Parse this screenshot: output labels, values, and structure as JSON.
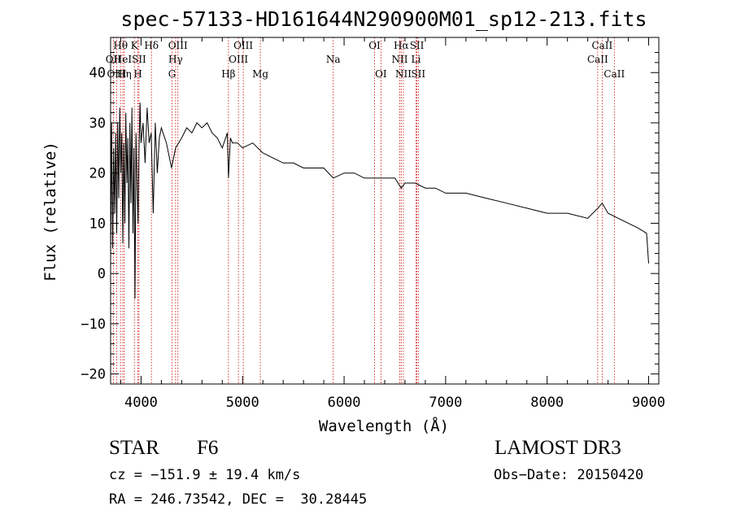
{
  "chart_data": {
    "type": "line",
    "title": "spec-57133-HD161644N290900M01_sp12-213.fits",
    "xlabel": "Wavelength (Å)",
    "ylabel": "Flux (relative)",
    "xlim": [
      3700,
      9100
    ],
    "ylim": [
      -22,
      47
    ],
    "xticks": [
      4000,
      5000,
      6000,
      7000,
      8000,
      9000
    ],
    "xtick_labels": [
      "4000",
      "5000",
      "6000",
      "7000",
      "8000",
      "9000"
    ],
    "yticks": [
      -20,
      -10,
      0,
      10,
      20,
      30,
      40
    ],
    "ytick_labels": [
      "−20",
      "−10",
      "0",
      "10",
      "20",
      "30",
      "40"
    ],
    "spectrum": {
      "name": "flux",
      "x": [
        3700,
        3710,
        3720,
        3730,
        3740,
        3750,
        3760,
        3770,
        3780,
        3790,
        3800,
        3810,
        3820,
        3830,
        3840,
        3850,
        3860,
        3870,
        3880,
        3890,
        3900,
        3910,
        3920,
        3930,
        3940,
        3950,
        3960,
        3970,
        3980,
        3990,
        4000,
        4020,
        4040,
        4060,
        4080,
        4100,
        4120,
        4140,
        4160,
        4180,
        4200,
        4250,
        4300,
        4340,
        4400,
        4450,
        4500,
        4550,
        4600,
        4650,
        4700,
        4750,
        4800,
        4850,
        4861,
        4880,
        4900,
        4950,
        5000,
        5100,
        5200,
        5300,
        5400,
        5500,
        5600,
        5700,
        5800,
        5893,
        6000,
        6100,
        6200,
        6300,
        6400,
        6500,
        6563,
        6600,
        6700,
        6800,
        6900,
        7000,
        7200,
        7400,
        7600,
        7800,
        8000,
        8200,
        8400,
        8500,
        8542,
        8600,
        8700,
        8800,
        8900,
        8980,
        9000
      ],
      "y": [
        2,
        30,
        5,
        25,
        12,
        28,
        8,
        30,
        15,
        33,
        20,
        28,
        6,
        26,
        10,
        32,
        18,
        27,
        5,
        30,
        14,
        33,
        8,
        25,
        -5,
        28,
        18,
        10,
        24,
        34,
        26,
        30,
        22,
        33,
        26,
        28,
        12,
        30,
        20,
        27,
        29,
        26,
        21,
        25,
        27,
        29,
        28,
        30,
        29,
        30,
        28,
        27,
        25,
        28,
        19,
        27,
        26,
        26,
        25,
        26,
        24,
        23,
        22,
        22,
        21,
        21,
        21,
        19,
        20,
        20,
        19,
        19,
        19,
        19,
        17,
        18,
        18,
        17,
        17,
        16,
        16,
        15,
        14,
        13,
        12,
        12,
        11,
        13,
        14,
        12,
        11,
        10,
        9,
        8,
        2
      ]
    },
    "lines": [
      {
        "label": "OII",
        "x": 3727,
        "row": 1
      },
      {
        "label": "Hθ",
        "x": 3798,
        "row": 0
      },
      {
        "label": "HeI",
        "x": 3820,
        "row": 1
      },
      {
        "label": "OIII",
        "x": 3760,
        "row": 2
      },
      {
        "label": "Hη",
        "x": 3835,
        "row": 2
      },
      {
        "label": "K",
        "x": 3934,
        "row": 0
      },
      {
        "label": "SII",
        "x": 3980,
        "row": 1
      },
      {
        "label": "H",
        "x": 3969,
        "row": 2
      },
      {
        "label": "Hδ",
        "x": 4102,
        "row": 0
      },
      {
        "label": "OIII",
        "x": 4363,
        "row": 0
      },
      {
        "label": "Hγ",
        "x": 4340,
        "row": 1
      },
      {
        "label": "G",
        "x": 4305,
        "row": 2
      },
      {
        "label": "Hβ",
        "x": 4861,
        "row": 2
      },
      {
        "label": "OIII",
        "x": 5007,
        "row": 0
      },
      {
        "label": "OIII",
        "x": 4959,
        "row": 1
      },
      {
        "label": "Mg",
        "x": 5175,
        "row": 2
      },
      {
        "label": "Na",
        "x": 5893,
        "row": 1
      },
      {
        "label": "OI",
        "x": 6300,
        "row": 0
      },
      {
        "label": "OI",
        "x": 6363,
        "row": 2
      },
      {
        "label": "Hα",
        "x": 6563,
        "row": 0
      },
      {
        "label": "NII",
        "x": 6548,
        "row": 1
      },
      {
        "label": "NII",
        "x": 6584,
        "row": 2
      },
      {
        "label": "SII",
        "x": 6717,
        "row": 0
      },
      {
        "label": "Li",
        "x": 6708,
        "row": 1
      },
      {
        "label": "SII",
        "x": 6731,
        "row": 2
      },
      {
        "label": "CaII",
        "x": 8542,
        "row": 0
      },
      {
        "label": "CaII",
        "x": 8498,
        "row": 1
      },
      {
        "label": "CaII",
        "x": 8662,
        "row": 2
      }
    ]
  },
  "footer": {
    "class_label": "STAR",
    "subclass": "F6",
    "survey": "LAMOST DR3",
    "cz": "cz = −151.9 ± 19.4 km/s",
    "obs_date": "Obs−Date: 20150420",
    "coords": "RA = 246.73542, DEC =  30.28445"
  },
  "colors": {
    "line_marker": "#cc0000",
    "spectrum": "#000000",
    "axes": "#000000"
  }
}
